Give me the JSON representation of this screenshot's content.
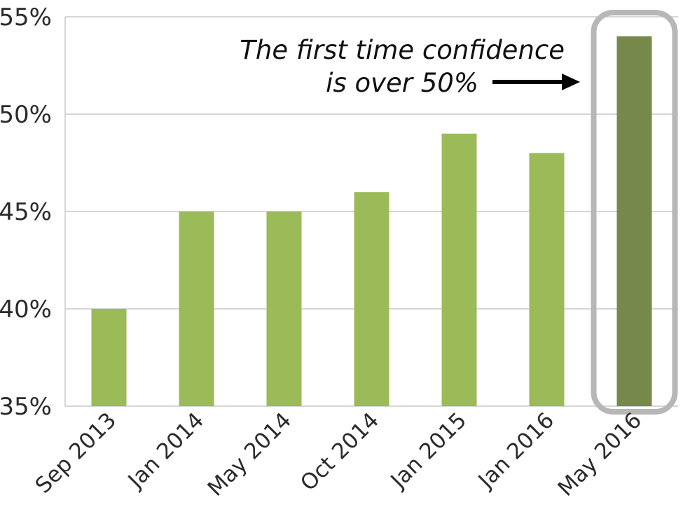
{
  "chart_data": {
    "type": "bar",
    "categories": [
      "Sep 2013",
      "Jan 2014",
      "May 2014",
      "Oct 2014",
      "Jan 2015",
      "Jan 2016",
      "May 2016"
    ],
    "values": [
      40,
      45,
      45,
      46,
      49,
      48,
      54
    ],
    "ylim": [
      35,
      55
    ],
    "yticks": [
      35,
      40,
      45,
      50,
      55
    ],
    "ytick_labels": [
      "35%",
      "40%",
      "45%",
      "50%",
      "55%"
    ],
    "grid": true,
    "highlight_index": 6,
    "annotation": {
      "line1": "The first time confidence",
      "line2": "is over 50%"
    },
    "colors": {
      "bar": "#9bbb59",
      "highlight_bar": "#76894a",
      "highlight_box": "#b7b7b7",
      "grid": "#c8c8c8",
      "arrow": "#000000"
    }
  }
}
